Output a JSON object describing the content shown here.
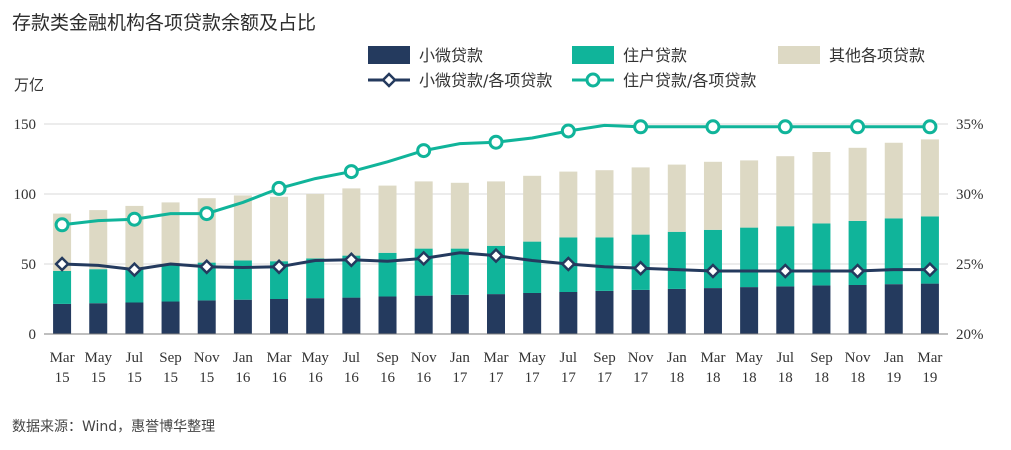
{
  "title": "存款类金融机构各项贷款余额及占比",
  "source": "数据来源：Wind，惠誉博华整理",
  "colors": {
    "micro": "#243a5e",
    "housing": "#10b49a",
    "other": "#ddd9c4",
    "axis": "#7f7f7f",
    "grid": "#d9d9d9"
  },
  "chart_data": {
    "type": "bar",
    "stacked": true,
    "title": "存款类金融机构各项贷款余额及占比",
    "ylabel": "万亿",
    "ylim": [
      0,
      150
    ],
    "yticks": [
      0,
      50,
      100,
      150
    ],
    "y2lim": [
      20,
      35
    ],
    "y2ticks": [
      "20%",
      "25%",
      "30%",
      "35%"
    ],
    "y2values": [
      20,
      25,
      30,
      35
    ],
    "categories": [
      [
        "Mar",
        "15"
      ],
      [
        "May",
        "15"
      ],
      [
        "Jul",
        "15"
      ],
      [
        "Sep",
        "15"
      ],
      [
        "Nov",
        "15"
      ],
      [
        "Jan",
        "16"
      ],
      [
        "Mar",
        "16"
      ],
      [
        "May",
        "16"
      ],
      [
        "Jul",
        "16"
      ],
      [
        "Sep",
        "16"
      ],
      [
        "Nov",
        "16"
      ],
      [
        "Jan",
        "17"
      ],
      [
        "Mar",
        "17"
      ],
      [
        "May",
        "17"
      ],
      [
        "Jul",
        "17"
      ],
      [
        "Sep",
        "17"
      ],
      [
        "Nov",
        "17"
      ],
      [
        "Jan",
        "18"
      ],
      [
        "Mar",
        "18"
      ],
      [
        "May",
        "18"
      ],
      [
        "Jul",
        "18"
      ],
      [
        "Sep",
        "18"
      ],
      [
        "Nov",
        "18"
      ],
      [
        "Jan",
        "19"
      ],
      [
        "Mar",
        "19"
      ]
    ],
    "series": [
      {
        "name": "小微贷款",
        "kind": "bar",
        "values": [
          21.5,
          22.0,
          22.5,
          23.2,
          24.0,
          24.5,
          25.0,
          25.6,
          26.0,
          26.8,
          27.4,
          28.0,
          28.5,
          29.3,
          30.0,
          30.8,
          31.5,
          32.2,
          32.8,
          33.5,
          34.0,
          34.7,
          35.0,
          35.6,
          36.0
        ]
      },
      {
        "name": "住户贷款",
        "kind": "bar",
        "values": [
          23.5,
          24.3,
          25.0,
          26.0,
          27.0,
          28.0,
          27.0,
          28.4,
          30.0,
          31.2,
          33.6,
          33.0,
          34.5,
          36.7,
          39.0,
          38.2,
          39.5,
          40.8,
          41.6,
          42.5,
          43.0,
          44.3,
          45.8,
          47.0,
          48.0
        ]
      },
      {
        "name": "其他各项贷款",
        "kind": "bar",
        "values": [
          41.0,
          42.2,
          44.0,
          44.8,
          46.0,
          46.5,
          46.0,
          46.0,
          48.0,
          48.0,
          48.0,
          47.0,
          46.0,
          47.0,
          47.0,
          48.0,
          48.0,
          48.0,
          48.6,
          48.0,
          50.0,
          51.0,
          52.2,
          54.0,
          55.0
        ]
      },
      {
        "name": "小微贷款/各项贷款",
        "kind": "line",
        "values": [
          25.0,
          24.9,
          24.6,
          25.0,
          24.8,
          24.75,
          24.8,
          25.25,
          25.3,
          25.2,
          25.4,
          25.8,
          25.6,
          25.25,
          25.0,
          24.8,
          24.7,
          24.6,
          24.5,
          24.5,
          24.5,
          24.5,
          24.5,
          24.6,
          24.6
        ]
      },
      {
        "name": "住户贷款/各项贷款",
        "kind": "line",
        "values": [
          27.8,
          28.1,
          28.2,
          28.6,
          28.6,
          29.4,
          30.4,
          31.1,
          31.6,
          32.3,
          33.1,
          33.6,
          33.7,
          34.0,
          34.5,
          34.9,
          34.8,
          34.8,
          34.8,
          34.8,
          34.8,
          34.8,
          34.8,
          34.8,
          34.8
        ]
      }
    ],
    "legend": {
      "placement": "top",
      "items": [
        "小微贷款",
        "住户贷款",
        "其他各项贷款",
        "小微贷款/各项贷款",
        "住户贷款/各项贷款"
      ]
    },
    "grid": true
  }
}
